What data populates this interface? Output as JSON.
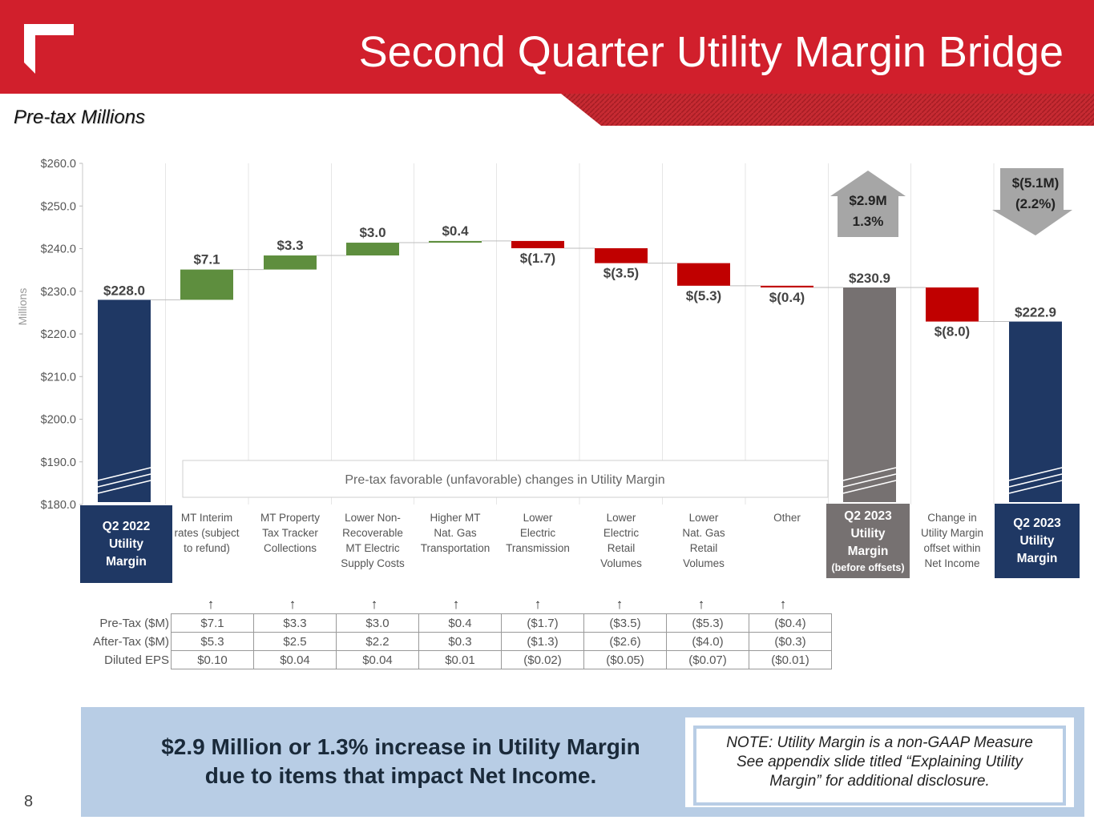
{
  "header": {
    "title": "Second Quarter Utility Margin Bridge",
    "subtitle": "Pre-tax Millions",
    "brand_color": "#d11f2c"
  },
  "chart_data": {
    "type": "waterfall",
    "ylabel": "Millions",
    "ylim": [
      180,
      260
    ],
    "yticks": [
      "$180.0",
      "$190.0",
      "$200.0",
      "$210.0",
      "$220.0",
      "$230.0",
      "$240.0",
      "$250.0",
      "$260.0"
    ],
    "steps": [
      {
        "name": "Q2 2022 Utility Margin",
        "kind": "total",
        "value": 228.0,
        "label": "$228.0",
        "color": "#1f3864"
      },
      {
        "name": "MT Interim rates (subject to refund)",
        "kind": "delta",
        "value": 7.1,
        "label": "$7.1",
        "color": "#5e8e3e"
      },
      {
        "name": "MT Property Tax Tracker Collections",
        "kind": "delta",
        "value": 3.3,
        "label": "$3.3",
        "color": "#5e8e3e"
      },
      {
        "name": "Lower Non-Recoverable MT Electric Supply Costs",
        "kind": "delta",
        "value": 3.0,
        "label": "$3.0",
        "color": "#5e8e3e"
      },
      {
        "name": "Higher MT Nat. Gas Transportation",
        "kind": "delta",
        "value": 0.4,
        "label": "$0.4",
        "color": "#5e8e3e"
      },
      {
        "name": "Lower Electric Transmission",
        "kind": "delta",
        "value": -1.7,
        "label": "$(1.7)",
        "color": "#c00000"
      },
      {
        "name": "Lower Electric Retail Volumes",
        "kind": "delta",
        "value": -3.5,
        "label": "$(3.5)",
        "color": "#c00000"
      },
      {
        "name": "Lower Nat. Gas Retail Volumes",
        "kind": "delta",
        "value": -5.3,
        "label": "$(5.3)",
        "color": "#c00000"
      },
      {
        "name": "Other",
        "kind": "delta",
        "value": -0.4,
        "label": "$(0.4)",
        "color": "#c00000"
      },
      {
        "name": "Q2 2023 Utility Margin (before offsets)",
        "kind": "total",
        "value": 230.9,
        "label": "$230.9",
        "color": "#767171"
      },
      {
        "name": "Change in Utility Margin offset within Net Income",
        "kind": "delta",
        "value": -8.0,
        "label": "$(8.0)",
        "color": "#c00000"
      },
      {
        "name": "Q2 2023 Utility Margin",
        "kind": "total",
        "value": 222.9,
        "label": "$222.9",
        "color": "#1f3864"
      }
    ],
    "callout_up": {
      "line1": "$2.9M",
      "line2": "1.3%"
    },
    "callout_down": {
      "line1": "$(5.1M)",
      "line2": "(2.2%)"
    },
    "inner_label": "Pre-tax favorable (unfavorable) changes in Utility Margin"
  },
  "categories": {
    "start_box": [
      "Q2 2022",
      "Utility",
      "Margin"
    ],
    "mid_box": [
      "Q2 2023",
      "Utility",
      "Margin",
      "(before offsets)"
    ],
    "end_box": [
      "Q2 2023",
      "Utility",
      "Margin"
    ],
    "labels": [
      [
        "MT Interim",
        "rates (subject",
        "to refund)"
      ],
      [
        "MT Property",
        "Tax Tracker",
        "Collections"
      ],
      [
        "Lower Non-",
        "Recoverable",
        "MT Electric",
        "Supply Costs"
      ],
      [
        "Higher MT",
        "Nat. Gas",
        "Transportation"
      ],
      [
        "Lower",
        "Electric",
        "Transmission"
      ],
      [
        "Lower",
        "Electric",
        "Retail",
        "Volumes"
      ],
      [
        "Lower",
        "Nat. Gas",
        "Retail",
        "Volumes"
      ],
      [
        "Other"
      ],
      [],
      [
        "Change in",
        "Utility Margin",
        "offset within",
        "Net Income"
      ]
    ]
  },
  "impact_table": {
    "arrow": "↑",
    "rows": [
      {
        "label": "Pre-Tax ($M)",
        "values": [
          "$7.1",
          "$3.3",
          "$3.0",
          "$0.4",
          "($1.7)",
          "($3.5)",
          "($5.3)",
          "($0.4)"
        ]
      },
      {
        "label": "After-Tax ($M)",
        "values": [
          "$5.3",
          "$2.5",
          "$2.2",
          "$0.3",
          "($1.3)",
          "($2.6)",
          "($4.0)",
          "($0.3)"
        ]
      },
      {
        "label": "Diluted EPS",
        "values": [
          "$0.10",
          "$0.04",
          "$0.04",
          "$0.01",
          "($0.02)",
          "($0.05)",
          "($0.07)",
          "($0.01)"
        ]
      }
    ]
  },
  "banner": {
    "line1": "$2.9 Million or 1.3% increase in Utility Margin",
    "line2": "due to items that impact Net Income."
  },
  "note": {
    "line1": "NOTE: Utility Margin is a non-GAAP Measure",
    "line2": "See appendix slide titled “Explaining Utility",
    "line3": "Margin” for additional disclosure."
  },
  "page_number": "8"
}
